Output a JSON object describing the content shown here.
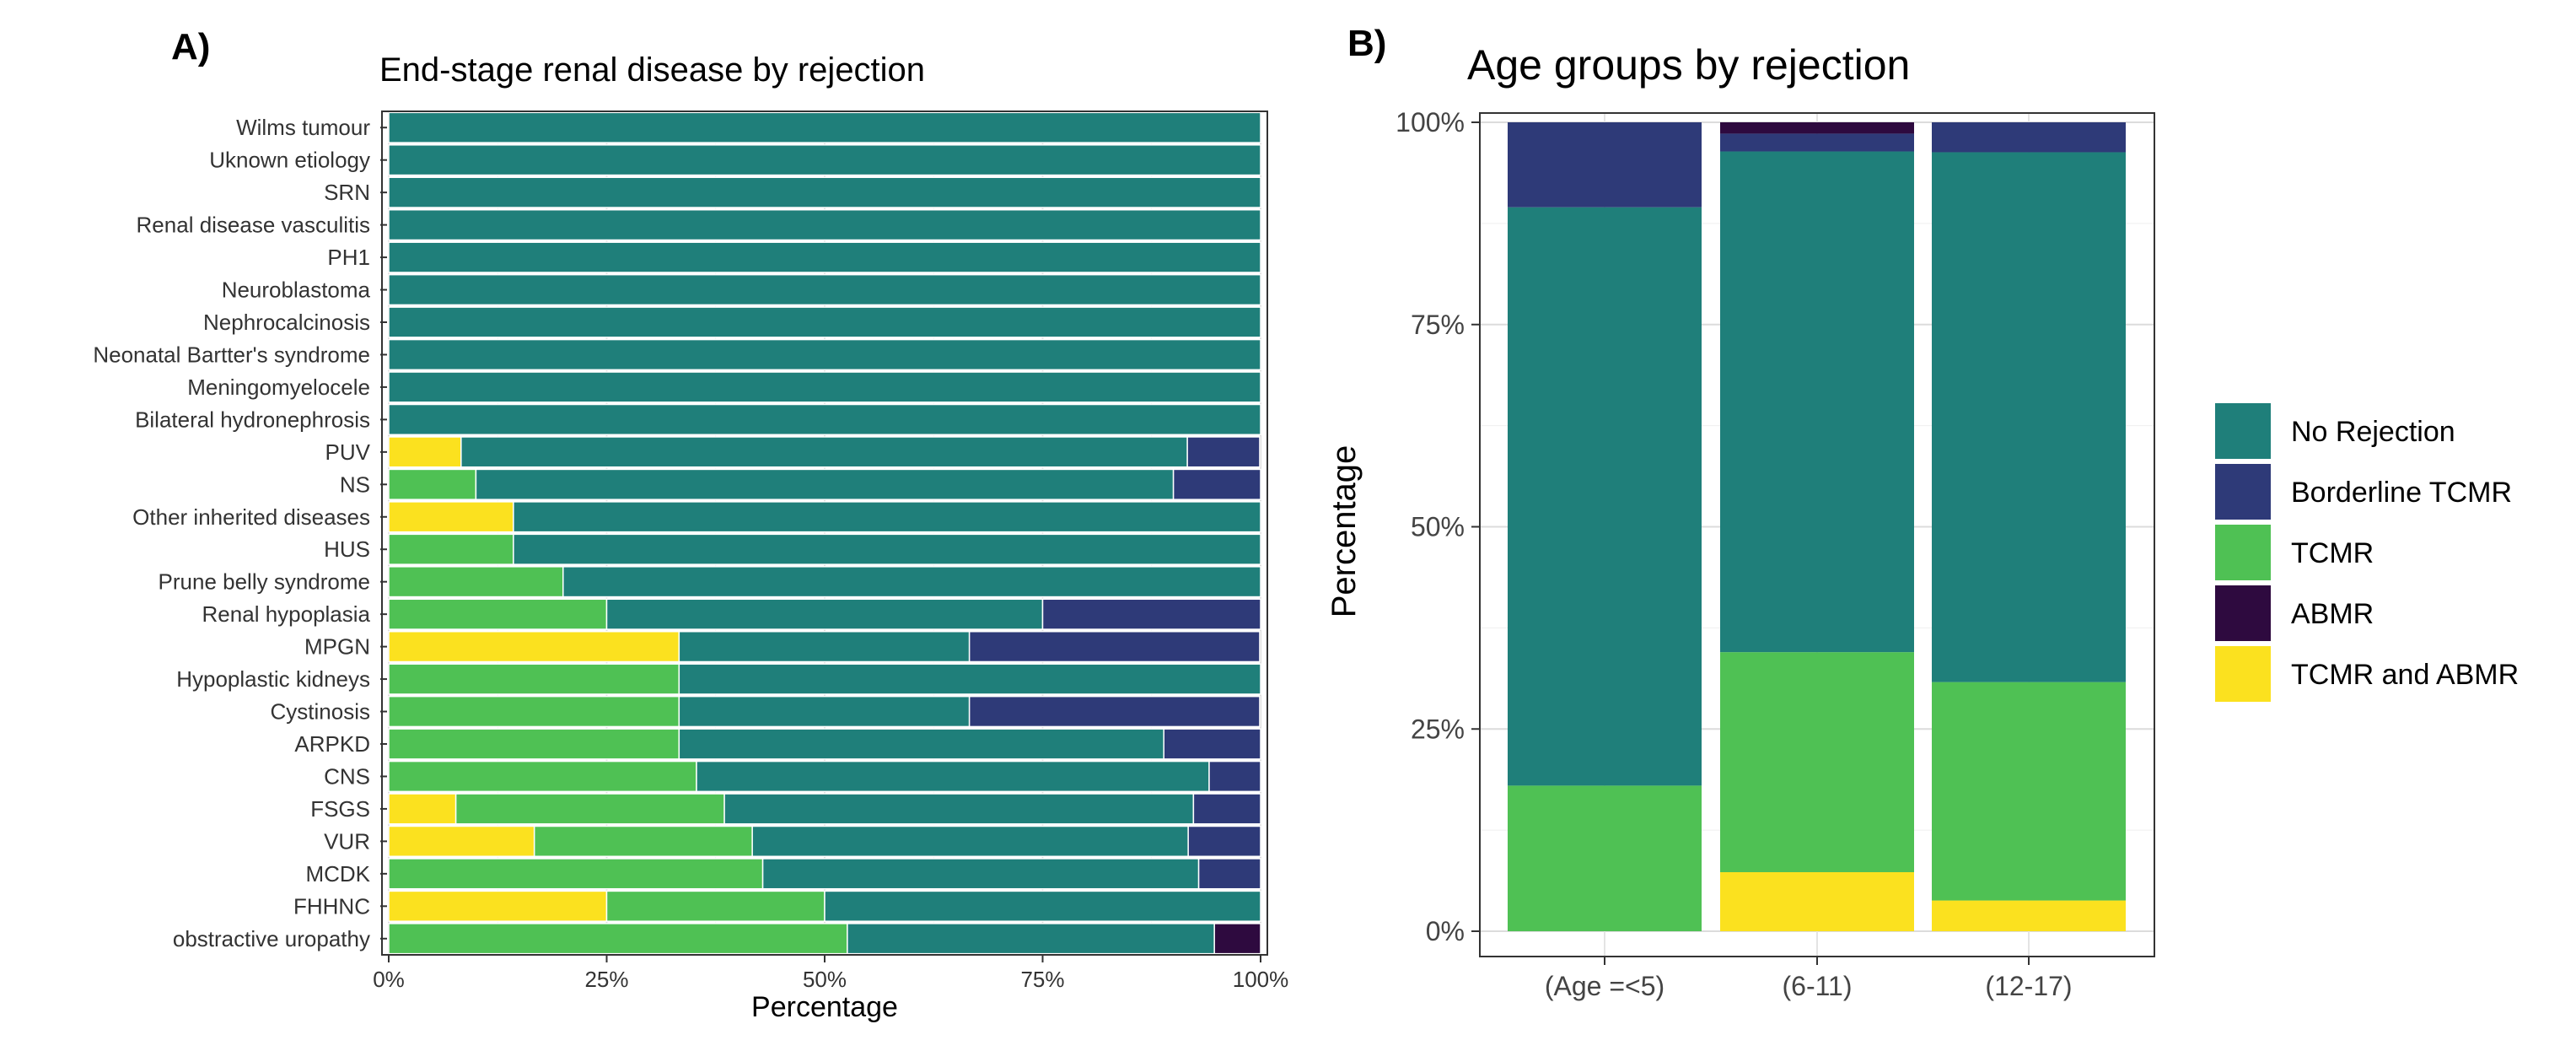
{
  "panels": [
    {
      "label": "A)"
    },
    {
      "label": "B)"
    }
  ],
  "colors": {
    "No Rejection": "#1f7f7a",
    "Borderline TCMR": "#2e3a78",
    "TCMR": "#4fc154",
    "ABMR": "#2e0a3f",
    "TCMR and ABMR": "#fbe11f"
  },
  "legend": {
    "entries": [
      "No Rejection",
      "Borderline TCMR",
      "TCMR",
      "ABMR",
      "TCMR and ABMR"
    ]
  },
  "chart_data": [
    {
      "type": "bar",
      "orientation": "horizontal",
      "stacked": true,
      "title": "End-stage renal disease by rejection",
      "xlabel": "Percentage",
      "ylabel": "",
      "xlim": [
        0,
        100
      ],
      "x_ticks": [
        "0%",
        "25%",
        "50%",
        "75%",
        "100%"
      ],
      "grid": true,
      "categories": [
        "Wilms tumour",
        "Uknown etiology",
        "SRN",
        "Renal disease vasculitis",
        "PH1",
        "Neuroblastoma",
        "Nephrocalcinosis",
        "Neonatal Bartter's syndrome",
        "Meningomyelocele",
        "Bilateral hydronephrosis",
        "PUV",
        "NS",
        "Other inherited diseases",
        "HUS",
        "Prune belly syndrome",
        "Renal hypoplasia",
        "MPGN",
        "Hypoplastic kidneys",
        "Cystinosis",
        "ARPKD",
        "CNS",
        "FSGS",
        "VUR",
        "MCDK",
        "FHHNC",
        "obstractive uropathy"
      ],
      "series": [
        {
          "name": "TCMR and ABMR",
          "values": [
            0,
            0,
            0,
            0,
            0,
            0,
            0,
            0,
            0,
            0,
            8.3,
            0,
            14.3,
            0,
            0,
            0,
            33.3,
            0,
            0,
            0,
            0,
            7.7,
            16.7,
            0,
            25,
            0
          ]
        },
        {
          "name": "TCMR",
          "values": [
            0,
            0,
            0,
            0,
            0,
            0,
            0,
            0,
            0,
            0,
            0,
            10,
            0,
            14.3,
            20,
            25,
            0,
            33.3,
            33.3,
            33.3,
            35.3,
            30.8,
            25,
            42.9,
            25,
            52.6
          ]
        },
        {
          "name": "No Rejection",
          "values": [
            100,
            100,
            100,
            100,
            100,
            100,
            100,
            100,
            100,
            100,
            83.3,
            80,
            85.7,
            85.7,
            80,
            50,
            33.3,
            66.7,
            33.3,
            55.6,
            58.8,
            53.8,
            50,
            50,
            50,
            42.1
          ]
        },
        {
          "name": "Borderline TCMR",
          "values": [
            0,
            0,
            0,
            0,
            0,
            0,
            0,
            0,
            0,
            0,
            8.3,
            10,
            0,
            0,
            0,
            25,
            33.3,
            0,
            33.3,
            11.1,
            5.9,
            7.7,
            8.3,
            7.1,
            0,
            0
          ]
        },
        {
          "name": "ABMR",
          "values": [
            0,
            0,
            0,
            0,
            0,
            0,
            0,
            0,
            0,
            0,
            0,
            0,
            0,
            0,
            0,
            0,
            0,
            0,
            0,
            0,
            0,
            0,
            0,
            0,
            0,
            5.3
          ]
        }
      ]
    },
    {
      "type": "bar",
      "orientation": "vertical",
      "stacked": true,
      "title": "Age groups by rejection",
      "xlabel": "",
      "ylabel": "Percentage",
      "ylim": [
        0,
        100
      ],
      "y_ticks": [
        "0%",
        "25%",
        "50%",
        "75%",
        "100%"
      ],
      "grid": true,
      "legend_position": "right",
      "categories": [
        "(Age =<5)",
        "(6-11)",
        "(12-17)"
      ],
      "series": [
        {
          "name": "TCMR and ABMR",
          "values": [
            0,
            7.3,
            3.8
          ]
        },
        {
          "name": "TCMR",
          "values": [
            18,
            27.2,
            27
          ]
        },
        {
          "name": "No Rejection",
          "values": [
            71.5,
            61.9,
            65.5
          ]
        },
        {
          "name": "Borderline TCMR",
          "values": [
            10.5,
            2.2,
            3.7
          ]
        },
        {
          "name": "ABMR",
          "values": [
            0,
            1.4,
            0
          ]
        }
      ]
    }
  ]
}
